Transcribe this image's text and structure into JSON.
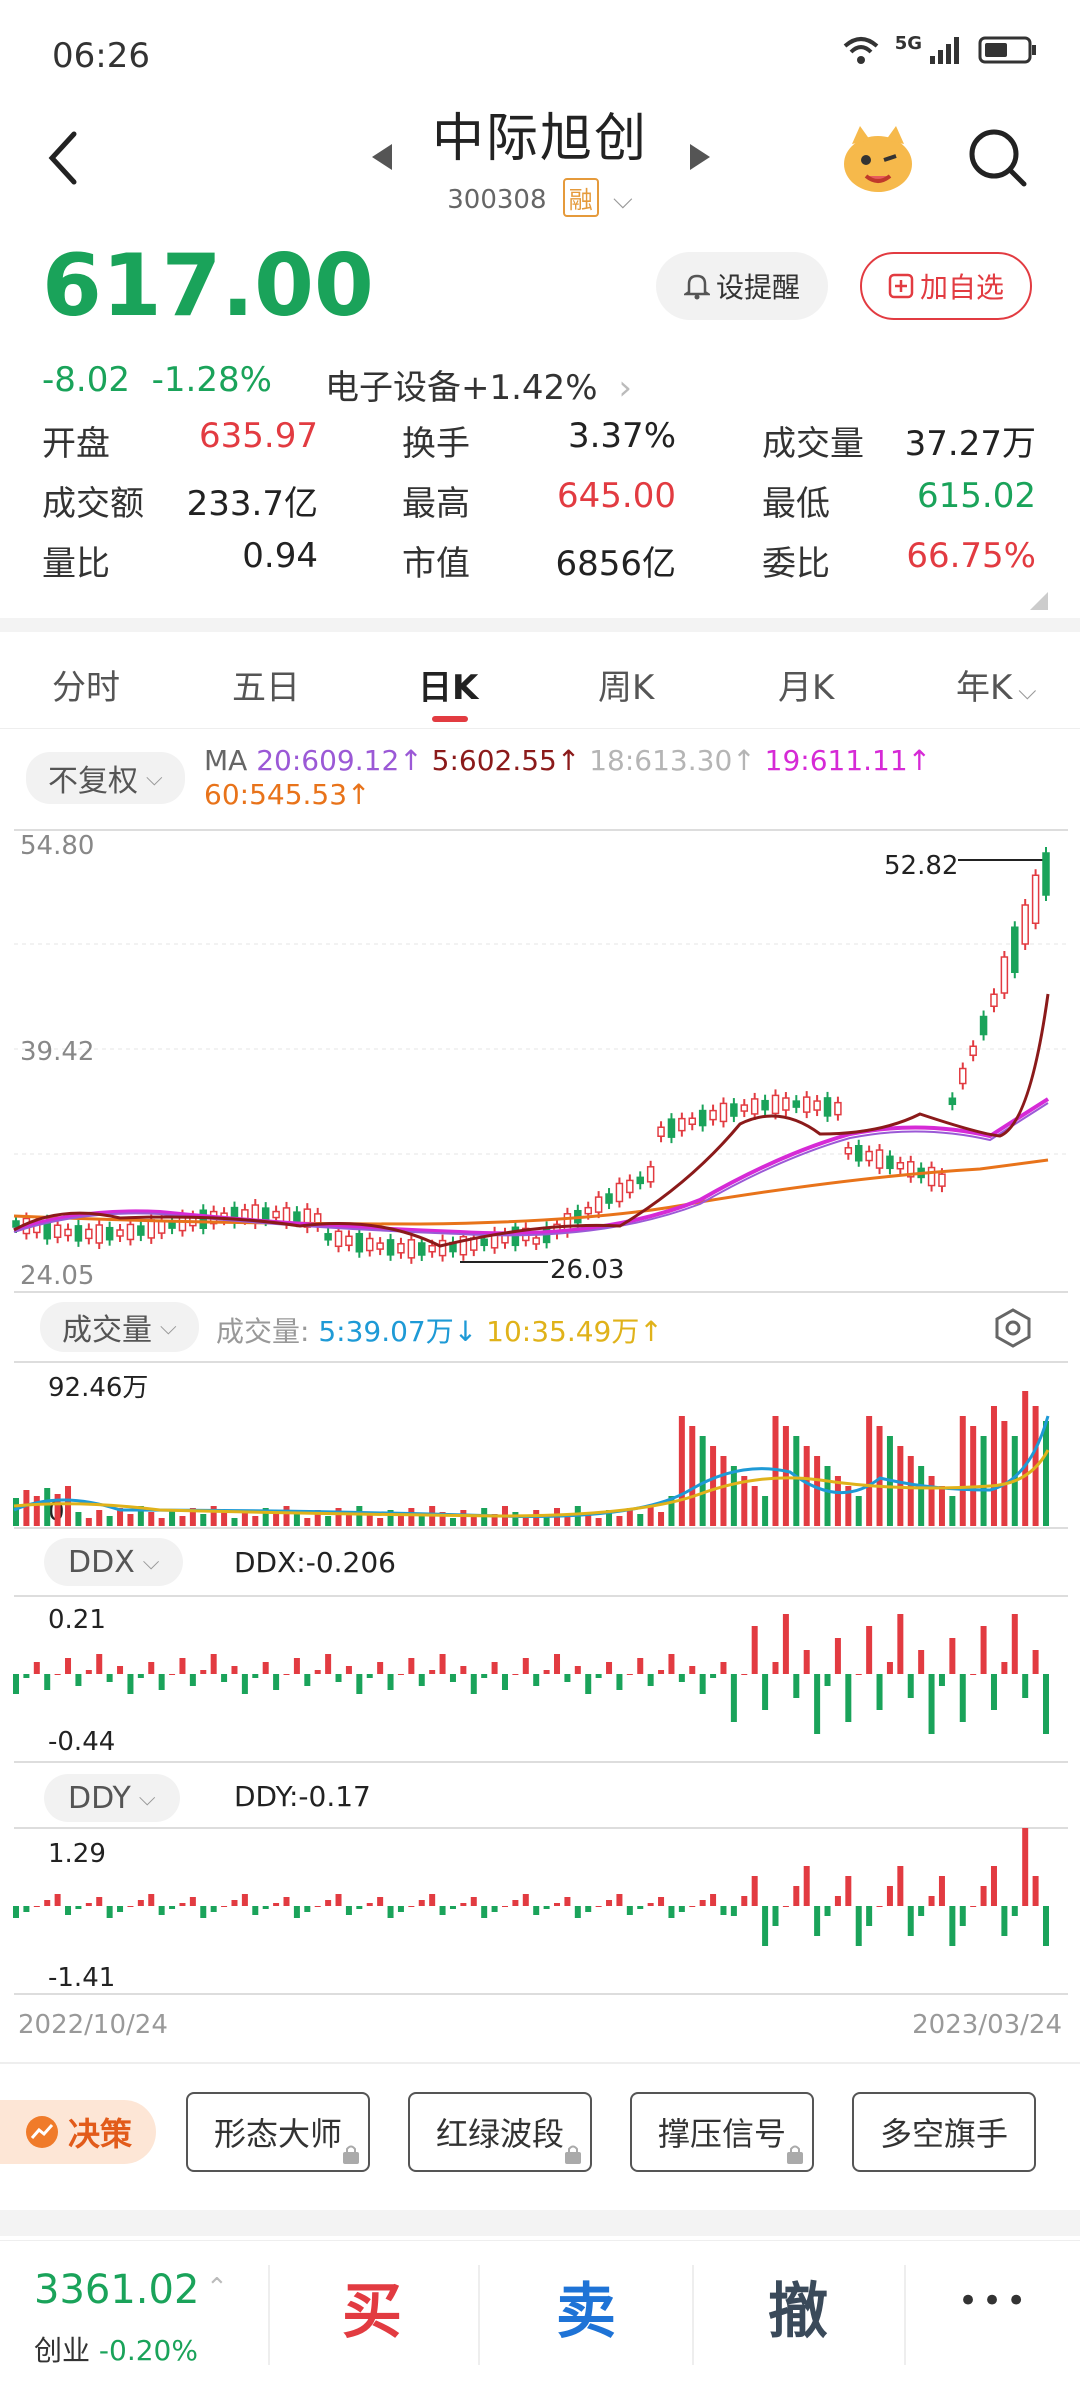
{
  "status": {
    "time": "06:26",
    "network": "5G"
  },
  "header": {
    "title": "中际旭创",
    "code": "300308",
    "badge": "融"
  },
  "quote": {
    "price": "617.00",
    "change": "-8.02",
    "change_pct": "-1.28%",
    "sector": "电子设备+1.42%",
    "remind_label": "设提醒",
    "add_label": "加自选",
    "stats": [
      {
        "label": "开盘",
        "value": "635.97",
        "color": "red"
      },
      {
        "label": "换手",
        "value": "3.37%",
        "color": "dark"
      },
      {
        "label": "成交量",
        "value": "37.27万",
        "color": "dark"
      },
      {
        "label": "成交额",
        "value": "233.7亿",
        "color": "dark"
      },
      {
        "label": "最高",
        "value": "645.00",
        "color": "red"
      },
      {
        "label": "最低",
        "value": "615.02",
        "color": "green"
      },
      {
        "label": "量比",
        "value": "0.94",
        "color": "dark"
      },
      {
        "label": "市值",
        "value": "6856亿",
        "color": "dark"
      },
      {
        "label": "委比",
        "value": "66.75%",
        "color": "red"
      }
    ]
  },
  "tabs": [
    "分时",
    "五日",
    "日K",
    "周K",
    "月K",
    "年K"
  ],
  "kline": {
    "adjust_label": "不复权",
    "ma_prefix": "MA",
    "ma20": "20:609.12↑",
    "ma5": "5:602.55↑",
    "ma18": "18:613.30↑",
    "ma19": "19:611.11↑",
    "ma60": "60:545.53↑",
    "y_top": "54.80",
    "y_mid": "39.42",
    "y_bottom": "24.05",
    "high_label": "52.82",
    "low_label": "26.03"
  },
  "volume": {
    "chip": "成交量",
    "label": "成交量:",
    "v5": "5:39.07万↓",
    "v10": "10:35.49万↑",
    "max": "92.46万",
    "zero": "0"
  },
  "ddx": {
    "chip": "DDX",
    "value": "DDX:-0.206",
    "top": "0.21",
    "bottom": "-0.44"
  },
  "ddy": {
    "chip": "DDY",
    "value": "DDY:-0.17",
    "top": "1.29",
    "bottom": "-1.41"
  },
  "dates": {
    "start": "2022/10/24",
    "end": "2023/03/24"
  },
  "tools": {
    "decision": "决策",
    "items": [
      "形态大师",
      "红绿波段",
      "撑压信号",
      "多空旗手"
    ]
  },
  "bottom": {
    "index_value": "3361.02",
    "index_name": "创业",
    "index_change": "-0.20%",
    "buy": "买",
    "sell": "卖",
    "cancel": "撤",
    "more": "•••"
  },
  "colors": {
    "red": "#e23b41",
    "green": "#1aa35a",
    "ma20": "#9b59d6",
    "ma5": "#8b1a1a",
    "ma18": "#b5b5b5",
    "ma19": "#d62ad6",
    "ma60": "#e8731a",
    "v5": "#1e9ad6",
    "v10": "#e0b21a"
  }
}
